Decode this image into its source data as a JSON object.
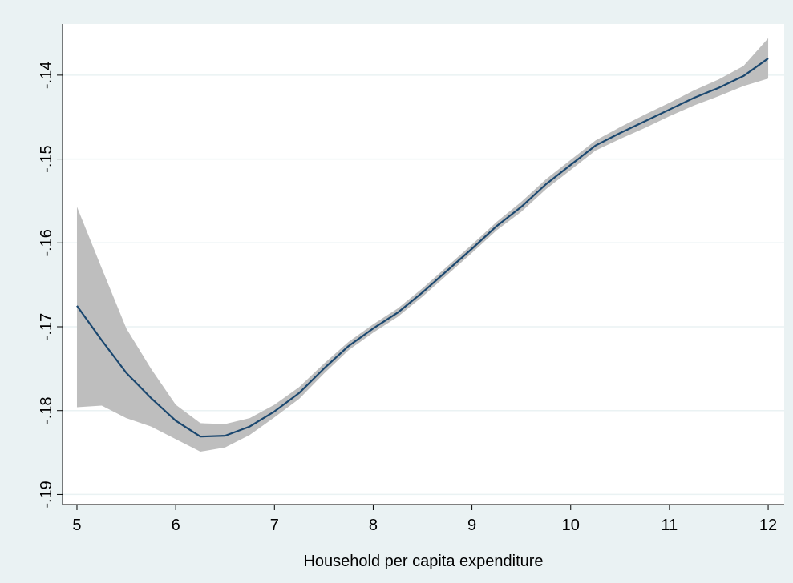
{
  "chart_data": {
    "type": "line",
    "x_label": "Household per capita expenditure",
    "x": [
      5,
      5.25,
      5.5,
      5.75,
      6,
      6.25,
      6.5,
      6.75,
      7,
      7.25,
      7.5,
      7.75,
      8,
      8.25,
      8.5,
      8.75,
      9,
      9.25,
      9.5,
      9.75,
      10,
      10.25,
      10.5,
      10.75,
      11,
      11.25,
      11.5,
      11.75,
      12
    ],
    "values": [
      -0.1675,
      -0.1716,
      -0.1755,
      -0.1785,
      -0.1812,
      -0.1831,
      -0.183,
      -0.1819,
      -0.1801,
      -0.1779,
      -0.175,
      -0.1723,
      -0.1702,
      -0.1683,
      -0.1659,
      -0.1633,
      -0.1607,
      -0.158,
      -0.1557,
      -0.153,
      -0.1507,
      -0.1484,
      -0.1469,
      -0.1455,
      -0.1441,
      -0.1427,
      -0.1415,
      -0.1401,
      -0.138
    ],
    "ci_upper": [
      -0.1557,
      -0.163,
      -0.1702,
      -0.175,
      -0.1793,
      -0.1815,
      -0.1816,
      -0.1809,
      -0.1793,
      -0.1772,
      -0.1744,
      -0.1718,
      -0.1697,
      -0.1678,
      -0.1654,
      -0.1628,
      -0.1602,
      -0.1575,
      -0.1551,
      -0.1524,
      -0.1501,
      -0.1478,
      -0.1462,
      -0.1447,
      -0.1433,
      -0.1418,
      -0.1405,
      -0.1389,
      -0.1356
    ],
    "ci_lower": [
      -0.1796,
      -0.1794,
      -0.1809,
      -0.1819,
      -0.1834,
      -0.1849,
      -0.1844,
      -0.1829,
      -0.1808,
      -0.1786,
      -0.1756,
      -0.1728,
      -0.1707,
      -0.1688,
      -0.1664,
      -0.1638,
      -0.1612,
      -0.1585,
      -0.1563,
      -0.1536,
      -0.1513,
      -0.149,
      -0.1476,
      -0.1463,
      -0.1449,
      -0.1436,
      -0.1425,
      -0.1413,
      -0.1404
    ],
    "line_color": "#1a476f",
    "band_color": "#bebebe",
    "xlim": [
      4.854,
      12.162
    ],
    "ylim": [
      -0.1912,
      -0.1339
    ],
    "xticks": [
      5,
      6,
      7,
      8,
      9,
      10,
      11,
      12
    ],
    "yticks": [
      {
        "value": -0.19,
        "label": "-.19"
      },
      {
        "value": -0.18,
        "label": "-.18"
      },
      {
        "value": -0.17,
        "label": "-.17"
      },
      {
        "value": -0.16,
        "label": "-.16"
      },
      {
        "value": -0.15,
        "label": "-.15"
      },
      {
        "value": -0.14,
        "label": "-.14"
      }
    ],
    "grid": true
  }
}
